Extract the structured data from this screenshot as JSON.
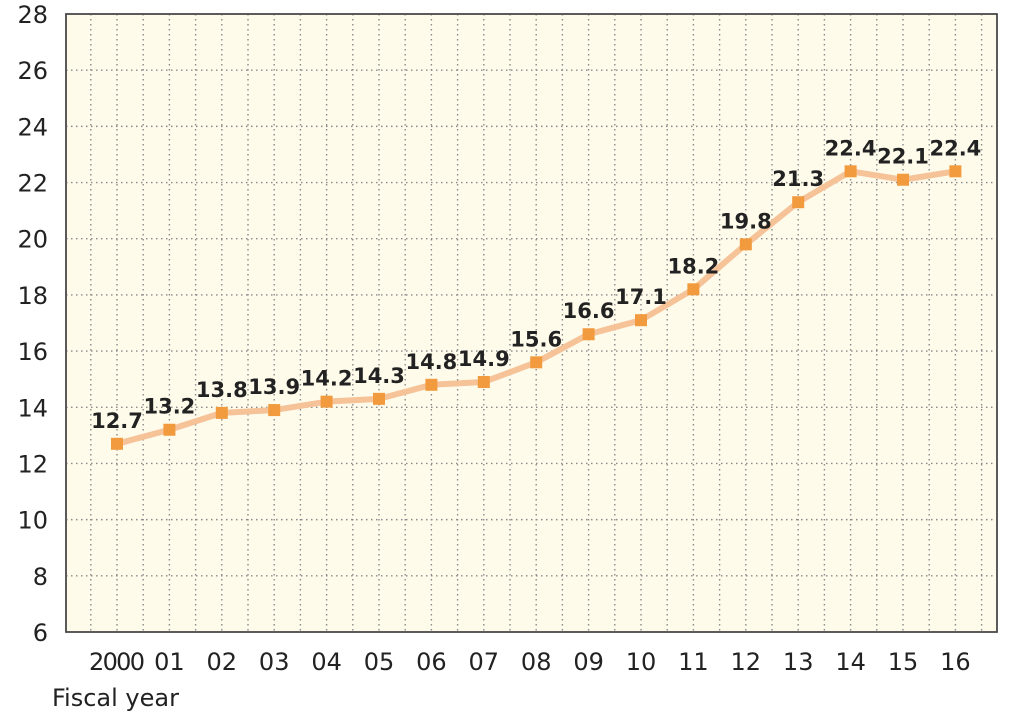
{
  "chart_data": {
    "type": "line",
    "title": "",
    "xlabel": "Fiscal year",
    "ylabel": "",
    "categories": [
      "2000",
      "01",
      "02",
      "03",
      "04",
      "05",
      "06",
      "07",
      "08",
      "09",
      "10",
      "11",
      "12",
      "13",
      "14",
      "15",
      "16"
    ],
    "values": [
      12.7,
      13.2,
      13.8,
      13.9,
      14.2,
      14.3,
      14.8,
      14.9,
      15.6,
      16.6,
      17.1,
      18.2,
      19.8,
      21.3,
      22.4,
      22.1,
      22.4
    ],
    "data_labels": [
      "12.7",
      "13.2",
      "13.8",
      "13.9",
      "14.2",
      "14.3",
      "14.8",
      "14.9",
      "15.6",
      "16.6",
      "17.1",
      "18.2",
      "19.8",
      "21.3",
      "22.4",
      "22.1",
      "22.4"
    ],
    "ylim": [
      6,
      28
    ],
    "yticks": [
      "6",
      "8",
      "10",
      "12",
      "14",
      "16",
      "18",
      "20",
      "22",
      "24",
      "26",
      "28"
    ],
    "grid": true,
    "grid_style": "dotted",
    "colors": {
      "plot_background": "#fefbeb",
      "line": "#f6c398",
      "marker": "#f29a3e",
      "grid": "#8a8a8a",
      "axis": "#444444"
    }
  }
}
